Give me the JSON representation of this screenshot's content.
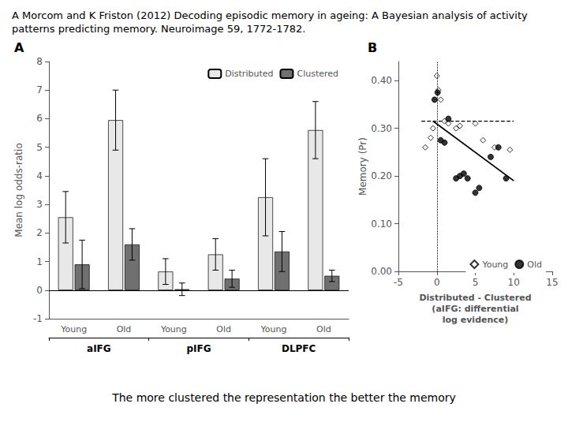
{
  "chart_data": [
    {
      "type": "bar",
      "title": "A Morcom and K Friston (2012) Decoding episodic memory in ageing: A Bayesian analysis of activity patterns predicting memory. Neuroimage 59, 1772-1782.",
      "footer": "The more clustered the representation the better the memory",
      "panel_label": "A",
      "categories": [
        "Young",
        "Old",
        "Young",
        "Old",
        "Young",
        "Old"
      ],
      "groups": [
        "aIFG",
        "pIFG",
        "DLPFC"
      ],
      "series": [
        {
          "name": "Distributed",
          "color": "#e8e8e8",
          "values": [
            2.55,
            5.95,
            0.65,
            1.25,
            3.25,
            5.6
          ],
          "errors": [
            0.9,
            1.05,
            0.45,
            0.55,
            1.35,
            1.0
          ]
        },
        {
          "name": "Clustered",
          "color": "#707070",
          "values": [
            0.9,
            1.6,
            0.03,
            0.4,
            1.35,
            0.5
          ],
          "errors": [
            0.85,
            0.55,
            0.22,
            0.3,
            0.7,
            0.2
          ]
        }
      ],
      "ylabel": "Mean log odds-ratio",
      "ylim": [
        -1,
        8
      ],
      "yticks": [
        -1,
        0,
        1,
        2,
        3,
        4,
        5,
        6,
        7,
        8
      ],
      "hlines": [
        0
      ],
      "grid": false,
      "legend": "upper right"
    },
    {
      "type": "scatter",
      "panel_label": "B",
      "xlabel": "Distributed - Clustered\n(aIFG: differential\nlog evidence)",
      "ylabel": "Memory (Pr)",
      "xlim": [
        -5,
        15
      ],
      "xticks": [
        -5,
        0,
        5,
        10,
        15
      ],
      "ylim": [
        0.0,
        0.44
      ],
      "yticks": [
        {
          "value": 0.0,
          "label": "0.00"
        },
        {
          "value": 0.1,
          "label": "0.10"
        },
        {
          "value": 0.2,
          "label": "0.20"
        },
        {
          "value": 0.3,
          "label": "0.30"
        },
        {
          "value": 0.4,
          "label": "0.40"
        }
      ],
      "series": [
        {
          "name": "Young",
          "type": "scatter",
          "marker": "diamond",
          "color": "#ffffff",
          "x": [
            -1.5,
            -0.8,
            -0.5,
            0.0,
            0.2,
            0.5,
            1.0,
            1.5,
            2.5,
            3.0,
            5.0,
            6.0,
            7.5,
            9.5
          ],
          "values": [
            0.26,
            0.28,
            0.3,
            0.41,
            0.38,
            0.36,
            0.315,
            0.31,
            0.3,
            0.305,
            0.31,
            0.275,
            0.26,
            0.255
          ]
        },
        {
          "name": "Old",
          "type": "scatter",
          "marker": "circle",
          "color": "#000000",
          "x": [
            -0.3,
            0.1,
            0.5,
            1.0,
            1.5,
            2.5,
            3.0,
            3.5,
            4.0,
            5.0,
            5.5,
            7.0,
            8.0,
            9.0
          ],
          "values": [
            0.36,
            0.375,
            0.275,
            0.27,
            0.32,
            0.195,
            0.2,
            0.205,
            0.195,
            0.165,
            0.175,
            0.24,
            0.26,
            0.195
          ]
        },
        {
          "type": "line",
          "line_style": "solid",
          "color": "#000000",
          "x": [
            -0.5,
            10.0
          ],
          "values": [
            0.315,
            0.19
          ]
        },
        {
          "type": "line",
          "line_style": "dashed",
          "color": "#000000",
          "x": [
            -2.0,
            10.0
          ],
          "values": [
            0.315,
            0.315
          ]
        }
      ],
      "vlines": [
        0
      ],
      "grid": false,
      "legend": "lower right"
    }
  ]
}
